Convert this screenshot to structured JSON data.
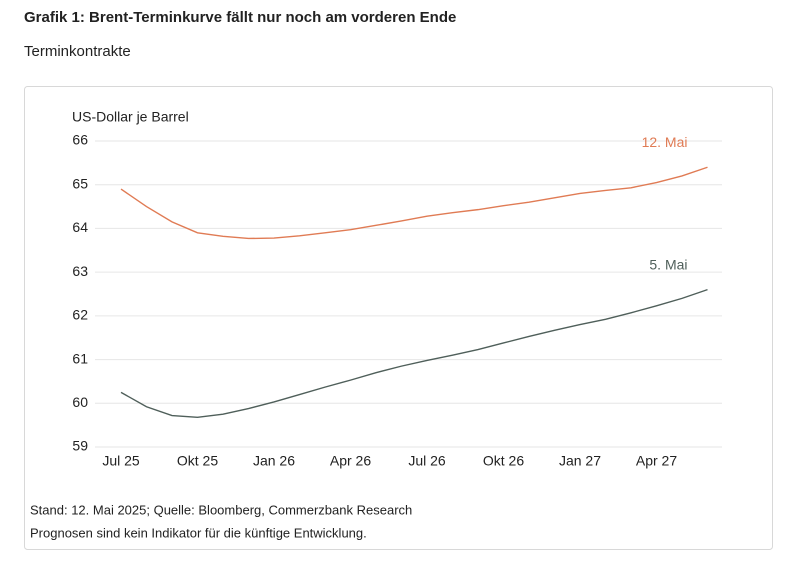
{
  "chart_data": {
    "type": "line",
    "title": "Grafik 1: Brent-Terminkurve fällt nur noch am vorderen Ende",
    "subtitle": "Terminkontrakte",
    "y_label": "US-Dollar je Barrel",
    "categories": [
      "Jul 25",
      null,
      null,
      "Okt 25",
      null,
      null,
      "Jan 26",
      null,
      null,
      "Apr 26",
      null,
      null,
      "Jul 26",
      null,
      null,
      "Okt 26",
      null,
      null,
      "Jan 27",
      null,
      null,
      "Apr 27",
      null,
      null
    ],
    "series": [
      {
        "name": "12. Mai",
        "color": "#e07b54",
        "values": [
          64.9,
          64.5,
          64.15,
          63.9,
          63.82,
          63.77,
          63.78,
          63.83,
          63.9,
          63.97,
          64.07,
          64.17,
          64.28,
          64.36,
          64.43,
          64.52,
          64.6,
          64.7,
          64.8,
          64.87,
          64.93,
          65.05,
          65.2,
          65.4
        ]
      },
      {
        "name": "5. Mai",
        "color": "#4f5f5a",
        "values": [
          60.25,
          59.92,
          59.72,
          59.68,
          59.75,
          59.88,
          60.03,
          60.2,
          60.37,
          60.53,
          60.7,
          60.85,
          60.98,
          61.1,
          61.23,
          61.38,
          61.53,
          61.67,
          61.8,
          61.92,
          62.07,
          62.23,
          62.4,
          62.6
        ]
      }
    ],
    "ylim": [
      59,
      66
    ],
    "yticks": [
      59,
      60,
      61,
      62,
      63,
      64,
      65,
      66
    ],
    "grid": true,
    "notes": [
      "Stand: 12. Mai 2025; Quelle: Bloomberg, Commerzbank Research",
      "Prognosen sind kein Indikator für die künftige Entwicklung."
    ]
  }
}
